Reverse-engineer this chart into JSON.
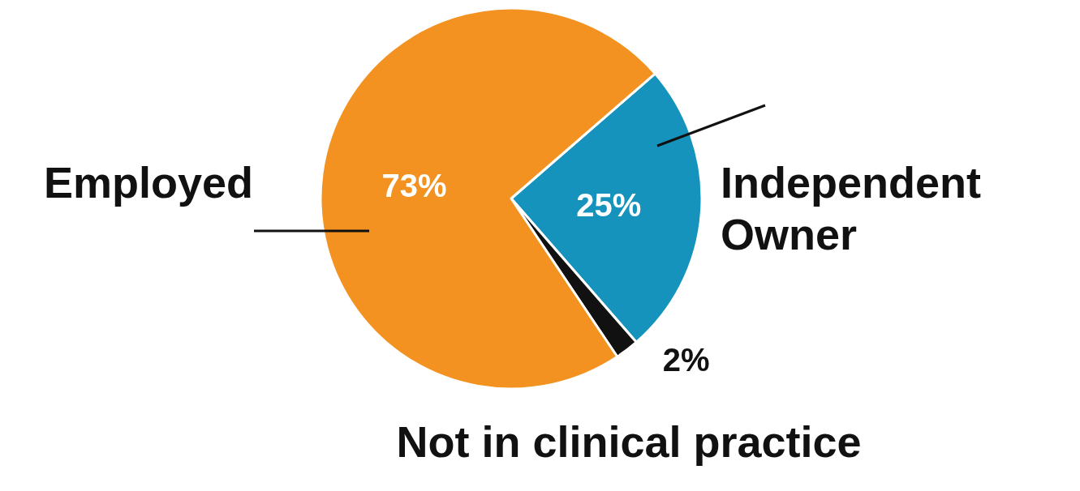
{
  "chart_data": {
    "type": "pie",
    "categories": [
      "Independent Owner",
      "Not in clinical practice",
      "Employed"
    ],
    "values": [
      25,
      2,
      73
    ],
    "value_labels": [
      "25%",
      "2%",
      "73%"
    ],
    "colors": [
      "#1593bd",
      "#111111",
      "#f39220"
    ]
  }
}
